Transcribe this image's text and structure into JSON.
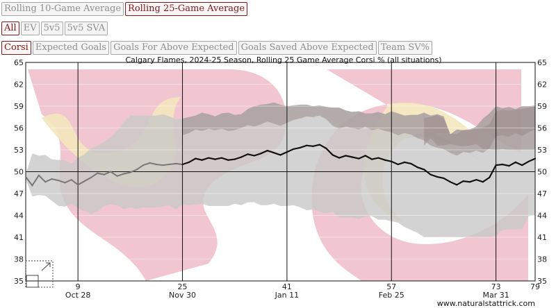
{
  "buttons": {
    "avg_row": [
      {
        "label": "Rolling 10-Game Average",
        "active": false
      },
      {
        "label": "Rolling 25-Game Average",
        "active": true
      }
    ],
    "situation_row": [
      {
        "label": "All",
        "active": true
      },
      {
        "label": "EV",
        "active": false
      },
      {
        "label": "5v5",
        "active": false
      },
      {
        "label": "5v5 SVA",
        "active": false
      }
    ],
    "metric_row": [
      {
        "label": "Corsi",
        "active": true
      },
      {
        "label": "Expected Goals",
        "active": false
      },
      {
        "label": "Goals For Above Expected",
        "active": false
      },
      {
        "label": "Goals Saved Above Expected",
        "active": false
      },
      {
        "label": "Team SV%",
        "active": false
      }
    ]
  },
  "credit": "www.naturalstattrick.com",
  "colors": {
    "active": "#7a1a1a",
    "line": "#111111",
    "band_light": "#c8c8c8",
    "band_dark": "#9a8a8a",
    "logo_red": "#eeb3c0",
    "logo_yellow": "#f3e7bd"
  },
  "chart_data": {
    "type": "line",
    "title": "Calgary Flames, 2024-25 Season, Rolling 25 Game Average Corsi % (all situations)",
    "xlim": [
      1,
      79
    ],
    "ylim": [
      35,
      65
    ],
    "yticks": [
      35,
      38,
      41,
      44,
      47,
      50,
      53,
      56,
      59,
      62,
      65
    ],
    "xticks": [
      9,
      25,
      41,
      57,
      73,
      79
    ],
    "date_labels": [
      {
        "x": 9,
        "label": "Oct 28"
      },
      {
        "x": 25,
        "label": "Nov 30"
      },
      {
        "x": 41,
        "label": "Jan 11"
      },
      {
        "x": 57,
        "label": "Feb 25"
      },
      {
        "x": 73,
        "label": "Mar 31"
      }
    ],
    "reference_line": 50,
    "grid": true,
    "x": [
      1,
      2,
      3,
      4,
      5,
      6,
      7,
      8,
      9,
      10,
      11,
      12,
      13,
      14,
      15,
      16,
      17,
      18,
      19,
      20,
      21,
      22,
      23,
      24,
      25,
      26,
      27,
      28,
      29,
      30,
      31,
      32,
      33,
      34,
      35,
      36,
      37,
      38,
      39,
      40,
      41,
      42,
      43,
      44,
      45,
      46,
      47,
      48,
      49,
      50,
      51,
      52,
      53,
      54,
      55,
      56,
      57,
      58,
      59,
      60,
      61,
      62,
      63,
      64,
      65,
      66,
      67,
      68,
      69,
      70,
      71,
      72,
      73,
      74,
      75,
      76,
      77,
      78,
      79
    ],
    "series": [
      {
        "values": [
          49.3,
          48.1,
          49.5,
          48.6,
          49.0,
          48.8,
          48.5,
          48.9,
          48.2,
          48.7,
          49.2,
          49.8,
          49.6,
          50.0,
          49.4,
          49.7,
          49.9,
          50.3,
          50.9,
          51.2,
          51.0,
          50.9,
          51.0,
          51.1,
          51.0,
          51.3,
          51.8,
          51.6,
          51.9,
          51.7,
          51.9,
          51.6,
          51.7,
          52.0,
          52.4,
          52.2,
          52.5,
          52.9,
          52.6,
          52.3,
          52.7,
          53.1,
          53.3,
          53.6,
          53.5,
          53.7,
          53.2,
          52.3,
          51.9,
          52.2,
          52.0,
          51.8,
          52.2,
          51.7,
          51.9,
          51.6,
          51.4,
          51.0,
          51.3,
          51.1,
          50.6,
          50.3,
          49.6,
          49.3,
          49.1,
          48.6,
          48.2,
          48.7,
          48.6,
          48.9,
          48.6,
          49.2,
          50.9,
          51.0,
          50.8,
          51.3,
          50.9,
          51.4,
          51.8
        ]
      }
    ],
    "band": {
      "upper": [
        49.6,
        52.5,
        52.2,
        52.3,
        51.7,
        51.6,
        51.6,
        51.1,
        51.9,
        52.4,
        53.2,
        53.6,
        54.1,
        54.7,
        55.6,
        56.8,
        57.7,
        57.7,
        57.7,
        57.7,
        57.7,
        57.9,
        57.6,
        57.2,
        57.3,
        57.5,
        57.7,
        58.1,
        57.9,
        57.6,
        58.0,
        58.1,
        57.8,
        57.9,
        58.6,
        59.0,
        59.2,
        59.3,
        59.5,
        59.2,
        59.0,
        59.1,
        59.2,
        59.2,
        59.0,
        59.1,
        58.9,
        58.8,
        58.8,
        58.4,
        58.2,
        58.3,
        58.0,
        58.0,
        58.2,
        57.9,
        58.3,
        58.0,
        57.7,
        57.8,
        57.8,
        58.1,
        57.7,
        57.9,
        57.6,
        55.1,
        55.8,
        55.7,
        55.8,
        56.2,
        57.3,
        58.0,
        59.0,
        58.7,
        58.9,
        58.6,
        59.0,
        59.0,
        59.1
      ],
      "lower": [
        49.0,
        46.6,
        46.8,
        46.7,
        46.0,
        45.3,
        45.2,
        45.6,
        45.0,
        44.6,
        44.2,
        44.5,
        45.3,
        45.5,
        45.4,
        44.9,
        45.1,
        44.9,
        45.1,
        45.1,
        45.1,
        45.2,
        45.4,
        44.8,
        45.5,
        45.4,
        45.5,
        45.6,
        45.3,
        45.3,
        45.3,
        45.3,
        45.6,
        45.4,
        45.8,
        45.8,
        45.4,
        45.4,
        45.6,
        45.3,
        45.3,
        45.4,
        45.1,
        44.7,
        44.8,
        44.5,
        44.3,
        44.5,
        43.7,
        43.7,
        43.7,
        43.5,
        43.9,
        43.9,
        43.4,
        43.4,
        43.2,
        43.0,
        42.4,
        42.0,
        41.6,
        41.0,
        41.0,
        41.0,
        41.0,
        41.0,
        41.0,
        41.0,
        41.0,
        41.0,
        41.0,
        41.0,
        41.2,
        42.0,
        42.1,
        42.1,
        42.1,
        43.9,
        44.0
      ]
    },
    "inner_band": {
      "x_start": 62,
      "upper": [
        57.4,
        57.5,
        57.8,
        57.3,
        55.2,
        55.2,
        55.7,
        55.7,
        55.9,
        56.1,
        56.5,
        58.3,
        58.5,
        58.4,
        58.5,
        58.6,
        58.8,
        59.0
      ],
      "lower": [
        53.6,
        54.6,
        53.6,
        53.6,
        53.8,
        53.6,
        53.5,
        53.6,
        53.8,
        53.1,
        53.1,
        53.0,
        53.1,
        53.0,
        53.0,
        53.0,
        53.0,
        53.0
      ]
    },
    "team_color_split_x": 25
  }
}
